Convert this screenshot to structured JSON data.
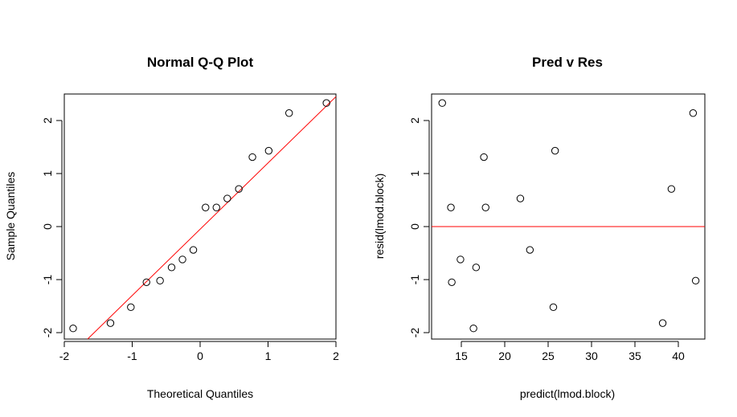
{
  "chart_data": [
    {
      "type": "scatter",
      "title": "Normal Q-Q Plot",
      "xlabel": "Theoretical Quantiles",
      "ylabel": "Sample Quantiles",
      "xlim": [
        -2,
        2
      ],
      "ylim": [
        -2,
        2
      ],
      "xticks": [
        "-2",
        "-1",
        "0",
        "1",
        "2"
      ],
      "yticks": [
        "-2",
        "-1",
        "0",
        "1",
        "2"
      ],
      "reference_line": {
        "color": "#ff0000",
        "slope": 1.25,
        "intercept": -0.05
      },
      "points": {
        "x": [
          -1.87,
          -1.32,
          -1.02,
          -0.79,
          -0.59,
          -0.42,
          -0.26,
          -0.1,
          0.08,
          0.24,
          0.4,
          0.57,
          0.77,
          1.01,
          1.31,
          1.86
        ],
        "y": [
          -1.92,
          -1.82,
          -1.52,
          -1.05,
          -1.02,
          -0.77,
          -0.62,
          -0.44,
          0.36,
          0.36,
          0.53,
          0.71,
          1.31,
          1.43,
          2.14,
          2.33
        ]
      },
      "grid": false
    },
    {
      "type": "scatter",
      "title": "Pred v Res",
      "xlabel": "predict(lmod.block)",
      "ylabel": "resid(lmod.block)",
      "xlim": [
        11.5,
        43.5
      ],
      "ylim": [
        -2,
        2
      ],
      "xticks": [
        "15",
        "20",
        "25",
        "30",
        "35",
        "40"
      ],
      "yticks": [
        "-2",
        "-1",
        "0",
        "1",
        "2"
      ],
      "reference_line": {
        "color": "#ff0000",
        "y": 0
      },
      "points": {
        "x": [
          12.8,
          13.8,
          13.9,
          14.9,
          16.4,
          16.7,
          17.6,
          17.8,
          21.8,
          22.9,
          25.6,
          25.8,
          38.2,
          39.2,
          41.7,
          42.0
        ],
        "y": [
          2.33,
          0.36,
          -1.05,
          -0.62,
          -1.92,
          -0.77,
          1.31,
          0.36,
          0.53,
          -0.44,
          -1.52,
          1.43,
          -1.82,
          0.71,
          2.14,
          -1.02
        ]
      },
      "grid": false
    }
  ]
}
